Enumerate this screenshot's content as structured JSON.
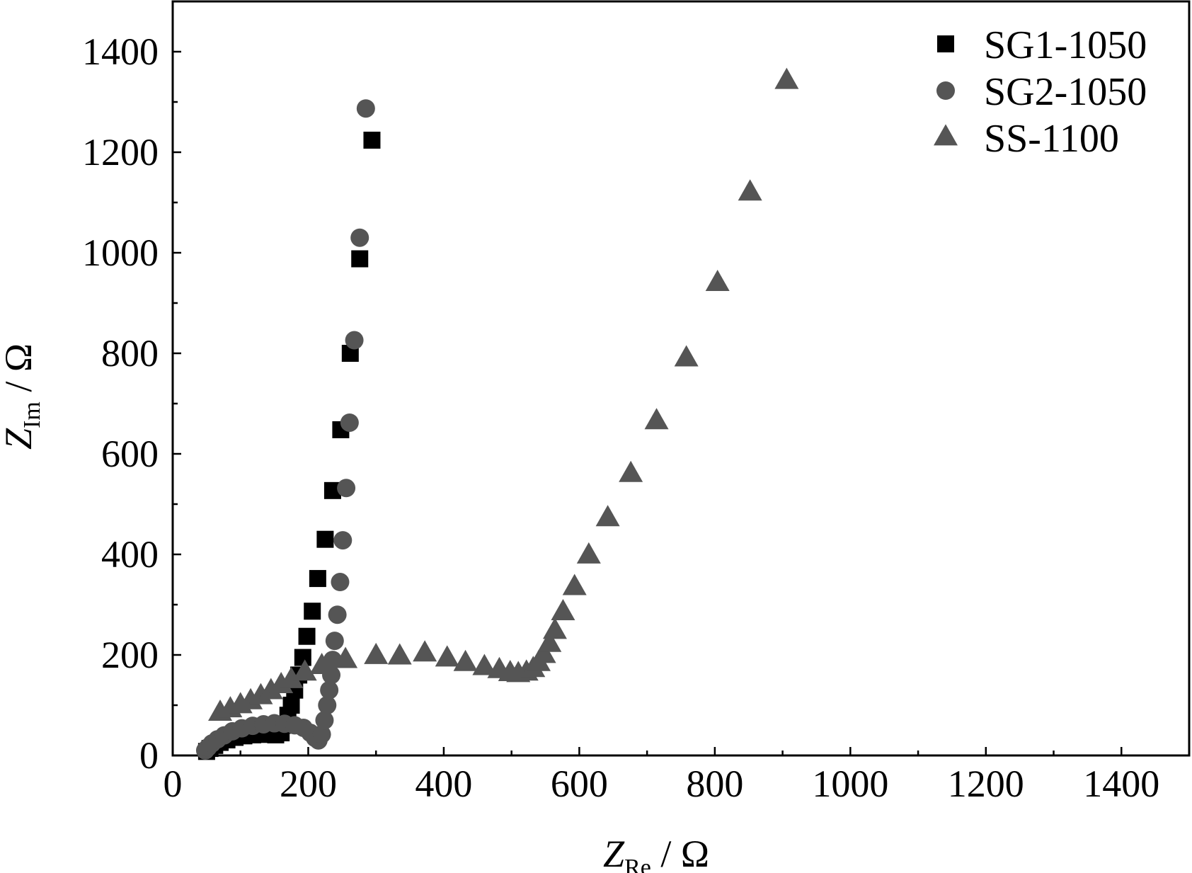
{
  "chart_data": {
    "type": "scatter",
    "xlabel": {
      "main": "Z",
      "sub": "Re",
      "unit": " / Ω"
    },
    "ylabel": {
      "main": "Z",
      "sub": "Im",
      "unit": " / Ω"
    },
    "xlim": [
      0,
      1500
    ],
    "ylim": [
      0,
      1500
    ],
    "xticks": [
      0,
      200,
      400,
      600,
      800,
      1000,
      1200,
      1400
    ],
    "yticks": [
      0,
      200,
      400,
      600,
      800,
      1000,
      1200,
      1400
    ],
    "x_tick_labels": [
      "0",
      "200",
      "400",
      "600",
      "800",
      "1000",
      "1200",
      "1400"
    ],
    "y_tick_labels": [
      "0",
      "200",
      "400",
      "600",
      "800",
      "1000",
      "1200",
      "1400"
    ],
    "grid": false,
    "legend_position": "top-right",
    "series": [
      {
        "name": "SG1-1050",
        "marker": "square",
        "color": "#000000",
        "points": [
          [
            50,
            8
          ],
          [
            55,
            14
          ],
          [
            62,
            20
          ],
          [
            70,
            26
          ],
          [
            80,
            31
          ],
          [
            92,
            36
          ],
          [
            105,
            39
          ],
          [
            118,
            41
          ],
          [
            130,
            42
          ],
          [
            142,
            42
          ],
          [
            152,
            41
          ],
          [
            160,
            45
          ],
          [
            165,
            60
          ],
          [
            170,
            80
          ],
          [
            175,
            100
          ],
          [
            180,
            130
          ],
          [
            186,
            160
          ],
          [
            192,
            195
          ],
          [
            198,
            237
          ],
          [
            206,
            287
          ],
          [
            214,
            352
          ],
          [
            225,
            430
          ],
          [
            236,
            527
          ],
          [
            248,
            648
          ],
          [
            262,
            800
          ],
          [
            276,
            988
          ],
          [
            294,
            1224
          ]
        ]
      },
      {
        "name": "SG2-1050",
        "marker": "circle",
        "color": "#555555",
        "points": [
          [
            48,
            10
          ],
          [
            52,
            16
          ],
          [
            58,
            24
          ],
          [
            66,
            32
          ],
          [
            76,
            40
          ],
          [
            88,
            48
          ],
          [
            102,
            54
          ],
          [
            118,
            59
          ],
          [
            134,
            62
          ],
          [
            150,
            64
          ],
          [
            165,
            63
          ],
          [
            180,
            60
          ],
          [
            193,
            55
          ],
          [
            203,
            45
          ],
          [
            210,
            35
          ],
          [
            215,
            30
          ],
          [
            220,
            42
          ],
          [
            224,
            70
          ],
          [
            228,
            100
          ],
          [
            231,
            130
          ],
          [
            234,
            160
          ],
          [
            236,
            190
          ],
          [
            239,
            228
          ],
          [
            243,
            280
          ],
          [
            247,
            345
          ],
          [
            251,
            428
          ],
          [
            256,
            532
          ],
          [
            261,
            662
          ],
          [
            268,
            826
          ],
          [
            276,
            1030
          ],
          [
            285,
            1287
          ]
        ]
      },
      {
        "name": "SS-1100",
        "marker": "triangle",
        "color": "#555555",
        "points": [
          [
            70,
            85
          ],
          [
            85,
            92
          ],
          [
            100,
            100
          ],
          [
            115,
            108
          ],
          [
            130,
            118
          ],
          [
            145,
            128
          ],
          [
            160,
            140
          ],
          [
            175,
            150
          ],
          [
            195,
            165
          ],
          [
            220,
            178
          ],
          [
            255,
            190
          ],
          [
            300,
            198
          ],
          [
            335,
            197
          ],
          [
            372,
            203
          ],
          [
            405,
            193
          ],
          [
            432,
            184
          ],
          [
            460,
            176
          ],
          [
            482,
            170
          ],
          [
            498,
            164
          ],
          [
            510,
            162
          ],
          [
            522,
            165
          ],
          [
            532,
            172
          ],
          [
            540,
            184
          ],
          [
            548,
            200
          ],
          [
            556,
            222
          ],
          [
            564,
            248
          ],
          [
            576,
            285
          ],
          [
            593,
            335
          ],
          [
            614,
            398
          ],
          [
            642,
            472
          ],
          [
            676,
            560
          ],
          [
            714,
            665
          ],
          [
            758,
            790
          ],
          [
            804,
            940
          ],
          [
            852,
            1120
          ],
          [
            906,
            1342
          ]
        ]
      }
    ]
  }
}
